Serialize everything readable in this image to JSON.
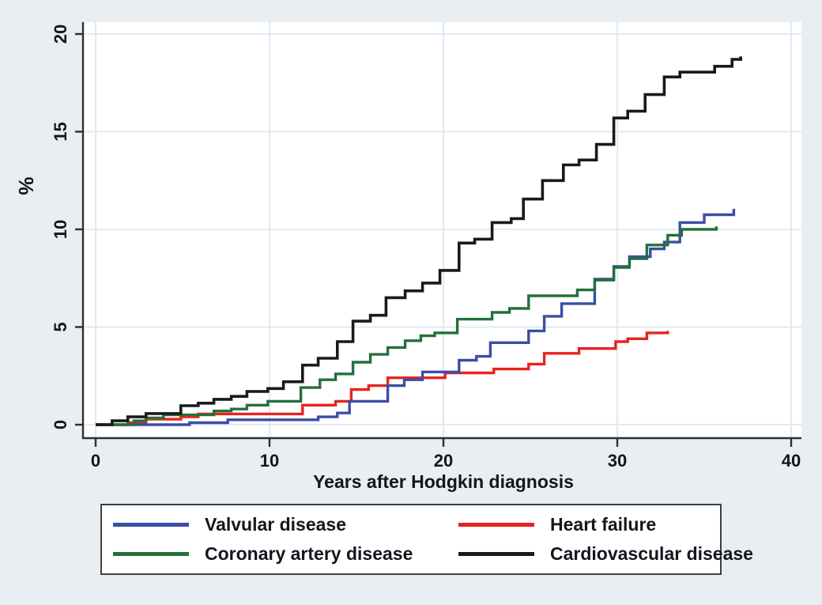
{
  "colors": {
    "background": "#e9eef3",
    "plot_background": "#ffffff",
    "gridline": "#dce8f2",
    "axis": "#2f2f2f",
    "text": "#15151f",
    "legend_border": "#3f3f3f",
    "valvular_blue": "#3a4ea5",
    "heart_failure_red": "#e8231f",
    "coronary_green": "#23703a",
    "cardiovascular_black": "#1a1a1a"
  },
  "chart_data": {
    "type": "line",
    "step": true,
    "title": "",
    "xlabel": "Years after Hodgkin diagnosis",
    "ylabel": "%",
    "xlim": [
      0,
      40
    ],
    "ylim": [
      0,
      20
    ],
    "xticks": [
      0,
      10,
      20,
      30,
      40
    ],
    "yticks": [
      0,
      5,
      10,
      15,
      20
    ],
    "grid": true,
    "legend_position": "bottom",
    "draw_order": [
      1,
      0,
      2,
      3
    ],
    "series": [
      {
        "name": "Valvular disease",
        "color": "#3a4ea5",
        "points": [
          [
            0,
            0
          ],
          [
            5.4,
            0.1
          ],
          [
            7.6,
            0.25
          ],
          [
            12.8,
            0.4
          ],
          [
            13.9,
            0.6
          ],
          [
            14.6,
            1.2
          ],
          [
            16.8,
            2.0
          ],
          [
            17.75,
            2.3
          ],
          [
            18.8,
            2.7
          ],
          [
            20.9,
            3.3
          ],
          [
            21.9,
            3.5
          ],
          [
            22.7,
            4.2
          ],
          [
            24.9,
            4.8
          ],
          [
            25.8,
            5.55
          ],
          [
            26.8,
            6.2
          ],
          [
            28.7,
            7.45
          ],
          [
            29.8,
            8.1
          ],
          [
            30.7,
            8.6
          ],
          [
            31.9,
            9.0
          ],
          [
            32.7,
            9.35
          ],
          [
            33.6,
            10.35
          ],
          [
            35.0,
            10.75
          ],
          [
            36.7,
            11.05
          ]
        ]
      },
      {
        "name": "Heart failure",
        "color": "#e8231f",
        "points": [
          [
            0,
            0
          ],
          [
            1.85,
            0.1
          ],
          [
            2.9,
            0.28
          ],
          [
            4.9,
            0.4
          ],
          [
            5.9,
            0.55
          ],
          [
            11.9,
            1.0
          ],
          [
            13.8,
            1.2
          ],
          [
            14.7,
            1.8
          ],
          [
            15.7,
            2.0
          ],
          [
            16.8,
            2.4
          ],
          [
            20.1,
            2.65
          ],
          [
            22.9,
            2.85
          ],
          [
            24.9,
            3.1
          ],
          [
            25.8,
            3.65
          ],
          [
            27.8,
            3.9
          ],
          [
            29.9,
            4.25
          ],
          [
            30.6,
            4.4
          ],
          [
            31.7,
            4.7
          ],
          [
            32.9,
            4.8
          ]
        ]
      },
      {
        "name": "Coronary artery disease",
        "color": "#23703a",
        "points": [
          [
            0,
            0
          ],
          [
            2.2,
            0.2
          ],
          [
            2.9,
            0.35
          ],
          [
            3.9,
            0.5
          ],
          [
            6.8,
            0.7
          ],
          [
            7.8,
            0.8
          ],
          [
            8.7,
            1.0
          ],
          [
            9.9,
            1.2
          ],
          [
            11.8,
            1.9
          ],
          [
            12.9,
            2.3
          ],
          [
            13.8,
            2.6
          ],
          [
            14.8,
            3.2
          ],
          [
            15.8,
            3.6
          ],
          [
            16.8,
            3.95
          ],
          [
            17.8,
            4.3
          ],
          [
            18.7,
            4.55
          ],
          [
            19.5,
            4.7
          ],
          [
            20.8,
            5.4
          ],
          [
            22.8,
            5.75
          ],
          [
            23.8,
            5.95
          ],
          [
            24.9,
            6.6
          ],
          [
            27.7,
            6.9
          ],
          [
            28.7,
            7.4
          ],
          [
            29.8,
            8.05
          ],
          [
            30.7,
            8.5
          ],
          [
            31.7,
            9.2
          ],
          [
            32.9,
            9.7
          ],
          [
            33.7,
            10.0
          ],
          [
            35.7,
            10.15
          ]
        ]
      },
      {
        "name": "Cardiovascular disease",
        "color": "#1a1a1a",
        "points": [
          [
            0,
            0
          ],
          [
            0.95,
            0.2
          ],
          [
            1.85,
            0.4
          ],
          [
            2.9,
            0.57
          ],
          [
            4.9,
            0.97
          ],
          [
            5.9,
            1.1
          ],
          [
            6.8,
            1.3
          ],
          [
            7.8,
            1.45
          ],
          [
            8.7,
            1.7
          ],
          [
            9.9,
            1.85
          ],
          [
            10.8,
            2.2
          ],
          [
            11.9,
            3.05
          ],
          [
            12.8,
            3.4
          ],
          [
            13.9,
            4.25
          ],
          [
            14.8,
            5.3
          ],
          [
            15.8,
            5.6
          ],
          [
            16.7,
            6.5
          ],
          [
            17.8,
            6.85
          ],
          [
            18.8,
            7.25
          ],
          [
            19.8,
            7.9
          ],
          [
            20.9,
            9.3
          ],
          [
            21.8,
            9.5
          ],
          [
            22.8,
            10.35
          ],
          [
            23.9,
            10.55
          ],
          [
            24.6,
            11.55
          ],
          [
            25.7,
            12.5
          ],
          [
            26.9,
            13.3
          ],
          [
            27.8,
            13.55
          ],
          [
            28.8,
            14.35
          ],
          [
            29.8,
            15.7
          ],
          [
            30.6,
            16.05
          ],
          [
            31.6,
            16.9
          ],
          [
            32.7,
            17.8
          ],
          [
            33.6,
            18.05
          ],
          [
            35.6,
            18.35
          ],
          [
            36.6,
            18.7
          ],
          [
            37.1,
            18.85
          ]
        ]
      }
    ]
  },
  "legend": {
    "items": [
      {
        "label": "Valvular disease",
        "color": "#3a4ea5"
      },
      {
        "label": "Heart failure",
        "color": "#e8231f"
      },
      {
        "label": "Coronary artery disease",
        "color": "#23703a"
      },
      {
        "label": "Cardiovascular disease",
        "color": "#1a1a1a"
      }
    ]
  }
}
